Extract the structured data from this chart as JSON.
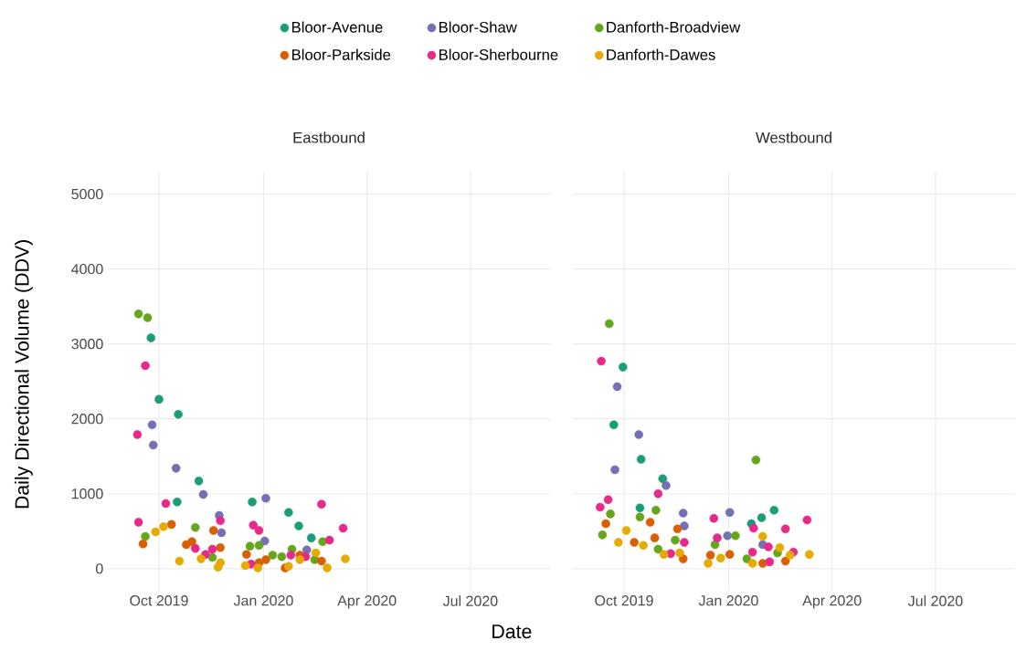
{
  "chart_data": [
    {
      "type": "scatter",
      "title": "Eastbound",
      "xlabel": "Date",
      "ylabel": "Daily Directional Volume (DDV)",
      "xlim": [
        "2019-08-17",
        "2020-09-09"
      ],
      "ylim": [
        -300,
        5300
      ],
      "xticks": [
        {
          "value": "2019-10-01",
          "label": "Oct 2019"
        },
        {
          "value": "2020-01-01",
          "label": "Jan 2020"
        },
        {
          "value": "2020-04-01",
          "label": "Apr 2020"
        },
        {
          "value": "2020-07-01",
          "label": "Jul 2020"
        }
      ],
      "yticks": [
        0,
        1000,
        2000,
        3000,
        4000,
        5000
      ],
      "grid": true,
      "legend": "top",
      "marker": "circle",
      "series": [
        {
          "name": "Bloor-Avenue",
          "color": "#1b9e77",
          "x": [
            "2019-09-24",
            "2019-10-01",
            "2019-10-18",
            "2019-10-17",
            "2019-11-05",
            "2019-12-22",
            "2020-01-23",
            "2020-02-01",
            "2020-02-12"
          ],
          "values": [
            3080,
            2260,
            2060,
            890,
            1170,
            890,
            750,
            570,
            410
          ]
        },
        {
          "name": "Bloor-Shaw",
          "color": "#7570b3",
          "x": [
            "2019-09-25",
            "2019-09-26",
            "2019-10-16",
            "2019-11-09",
            "2019-11-23",
            "2019-11-25",
            "2020-01-03",
            "2020-01-02",
            "2020-02-08"
          ],
          "values": [
            1920,
            1650,
            1340,
            990,
            710,
            480,
            940,
            370,
            250
          ]
        },
        {
          "name": "Danforth-Broadview",
          "color": "#66a61e",
          "x": [
            "2019-09-13",
            "2019-09-21",
            "2019-09-19",
            "2019-11-02",
            "2019-11-17",
            "2019-12-20",
            "2019-12-28",
            "2020-01-09",
            "2020-01-17",
            "2020-01-26",
            "2020-02-15",
            "2020-02-22"
          ],
          "values": [
            3400,
            3350,
            430,
            550,
            150,
            300,
            310,
            180,
            160,
            260,
            120,
            360
          ]
        },
        {
          "name": "Bloor-Parkside",
          "color": "#d95f02",
          "x": [
            "2019-09-17",
            "2019-10-12",
            "2019-10-25",
            "2019-10-30",
            "2019-11-18",
            "2019-11-24",
            "2019-12-17",
            "2019-12-28",
            "2020-01-03",
            "2020-01-20",
            "2020-02-02",
            "2020-02-21"
          ],
          "values": [
            330,
            590,
            320,
            360,
            510,
            280,
            190,
            80,
            120,
            10,
            180,
            100
          ]
        },
        {
          "name": "Bloor-Sherbourne",
          "color": "#e7298a",
          "x": [
            "2019-09-12",
            "2019-09-19",
            "2019-09-13",
            "2019-10-07",
            "2019-11-02",
            "2019-11-11",
            "2019-11-17",
            "2019-11-24",
            "2019-12-23",
            "2019-12-28",
            "2019-12-21",
            "2020-01-25",
            "2020-02-07",
            "2020-02-21",
            "2020-02-28",
            "2020-03-11"
          ],
          "values": [
            1790,
            2710,
            620,
            870,
            270,
            190,
            260,
            640,
            580,
            510,
            60,
            180,
            160,
            860,
            380,
            540
          ]
        },
        {
          "name": "Danforth-Dawes",
          "color": "#e6ab02",
          "x": [
            "2019-09-28",
            "2019-10-05",
            "2019-10-19",
            "2019-11-07",
            "2019-11-22",
            "2019-11-24",
            "2019-12-16",
            "2019-12-27",
            "2020-01-23",
            "2020-02-02",
            "2020-02-16",
            "2020-02-26",
            "2020-03-13"
          ],
          "values": [
            490,
            560,
            100,
            130,
            20,
            80,
            40,
            10,
            30,
            120,
            210,
            10,
            130
          ]
        }
      ]
    },
    {
      "type": "scatter",
      "title": "Westbound",
      "xlim": [
        "2019-08-17",
        "2020-09-09"
      ],
      "ylim": [
        -300,
        5300
      ],
      "xticks": [
        {
          "value": "2019-10-01",
          "label": "Oct 2019"
        },
        {
          "value": "2020-01-01",
          "label": "Jan 2020"
        },
        {
          "value": "2020-04-01",
          "label": "Apr 2020"
        },
        {
          "value": "2020-07-01",
          "label": "Jul 2020"
        }
      ],
      "yticks": [
        0,
        1000,
        2000,
        3000,
        4000,
        5000
      ],
      "grid": true,
      "marker": "circle",
      "tick_labels": "x",
      "series": [
        {
          "color": "#1b9e77",
          "x": [
            "2019-09-30",
            "2019-09-22",
            "2019-10-16",
            "2019-11-04",
            "2019-10-15",
            "2020-01-21",
            "2020-01-30",
            "2020-02-10"
          ],
          "values": [
            2690,
            1920,
            1460,
            1200,
            810,
            600,
            680,
            780
          ]
        },
        {
          "color": "#7570b3",
          "x": [
            "2019-09-25",
            "2019-10-14",
            "2019-09-23",
            "2019-11-07",
            "2019-11-22",
            "2019-11-23",
            "2019-12-31",
            "2020-01-02",
            "2020-01-31"
          ],
          "values": [
            2430,
            1790,
            1320,
            1110,
            740,
            570,
            440,
            750,
            320
          ]
        },
        {
          "color": "#66a61e",
          "x": [
            "2019-09-18",
            "2020-01-25",
            "2019-09-19",
            "2019-10-15",
            "2019-10-29",
            "2019-09-12",
            "2019-10-31",
            "2019-11-15",
            "2019-12-20",
            "2020-01-07",
            "2020-01-17",
            "2020-02-13"
          ],
          "values": [
            3270,
            1450,
            730,
            690,
            780,
            450,
            260,
            380,
            320,
            440,
            130,
            210
          ]
        },
        {
          "color": "#d95f02",
          "x": [
            "2019-09-15",
            "2019-10-10",
            "2019-10-24",
            "2019-10-28",
            "2019-11-17",
            "2019-11-22",
            "2019-12-16",
            "2020-01-02",
            "2020-01-31",
            "2020-02-20"
          ],
          "values": [
            600,
            350,
            620,
            410,
            530,
            130,
            180,
            190,
            70,
            100
          ]
        },
        {
          "color": "#e7298a",
          "x": [
            "2019-09-11",
            "2019-10-31",
            "2019-09-17",
            "2019-09-10",
            "2019-11-11",
            "2019-11-23",
            "2019-12-19",
            "2019-12-22",
            "2020-01-23",
            "2020-02-05",
            "2020-02-20",
            "2020-03-10",
            "2020-01-22",
            "2020-02-06",
            "2020-02-27"
          ],
          "values": [
            2770,
            1000,
            920,
            820,
            200,
            350,
            670,
            410,
            540,
            290,
            530,
            650,
            220,
            90,
            220
          ]
        },
        {
          "color": "#e6ab02",
          "x": [
            "2019-10-03",
            "2019-09-26",
            "2019-10-18",
            "2019-11-05",
            "2019-11-19",
            "2019-12-14",
            "2019-12-25",
            "2020-01-31",
            "2020-03-12",
            "2020-01-22",
            "2020-02-15",
            "2020-02-24"
          ],
          "values": [
            510,
            350,
            310,
            190,
            210,
            70,
            140,
            430,
            190,
            70,
            280,
            180
          ]
        }
      ]
    }
  ]
}
